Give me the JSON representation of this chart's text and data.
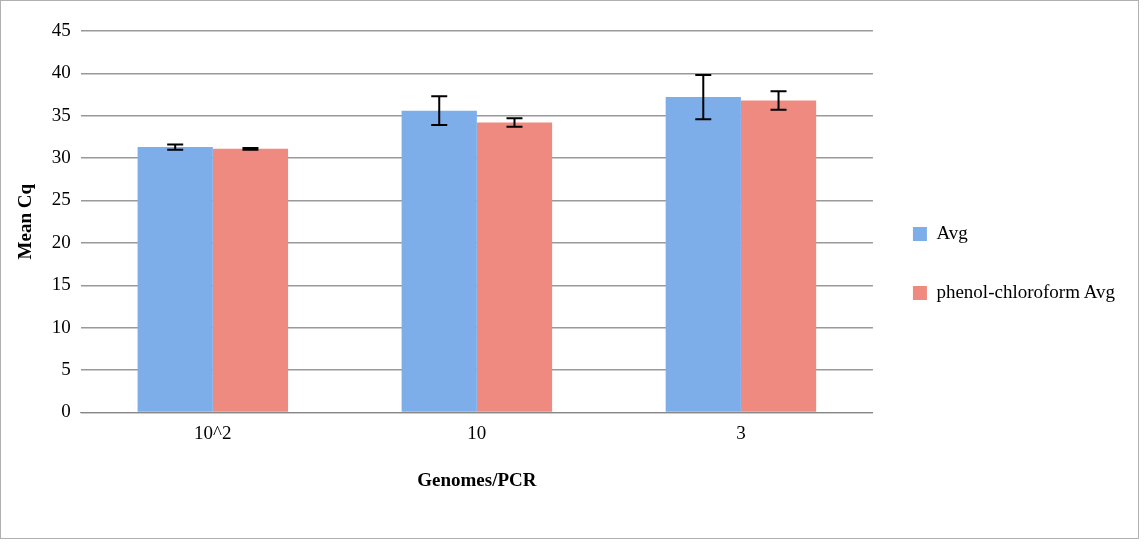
{
  "chart_data": {
    "type": "bar",
    "xlabel": "Genomes/PCR",
    "ylabel": "Mean Cq",
    "categories": [
      "10^2",
      "10",
      "3"
    ],
    "series": [
      {
        "name": "Avg",
        "color": "#7eaeea",
        "values": [
          31.3,
          35.6,
          37.2
        ],
        "errors": [
          0.3,
          1.7,
          2.6
        ]
      },
      {
        "name": "phenol-chloroform Avg",
        "color": "#ef8a80",
        "values": [
          31.1,
          34.2,
          36.8
        ],
        "errors": [
          0.1,
          0.5,
          1.1
        ]
      }
    ],
    "ylim": [
      0,
      45
    ],
    "yticks": [
      0,
      5,
      10,
      15,
      20,
      25,
      30,
      35,
      40,
      45
    ],
    "grid": "y",
    "legend": "right"
  }
}
